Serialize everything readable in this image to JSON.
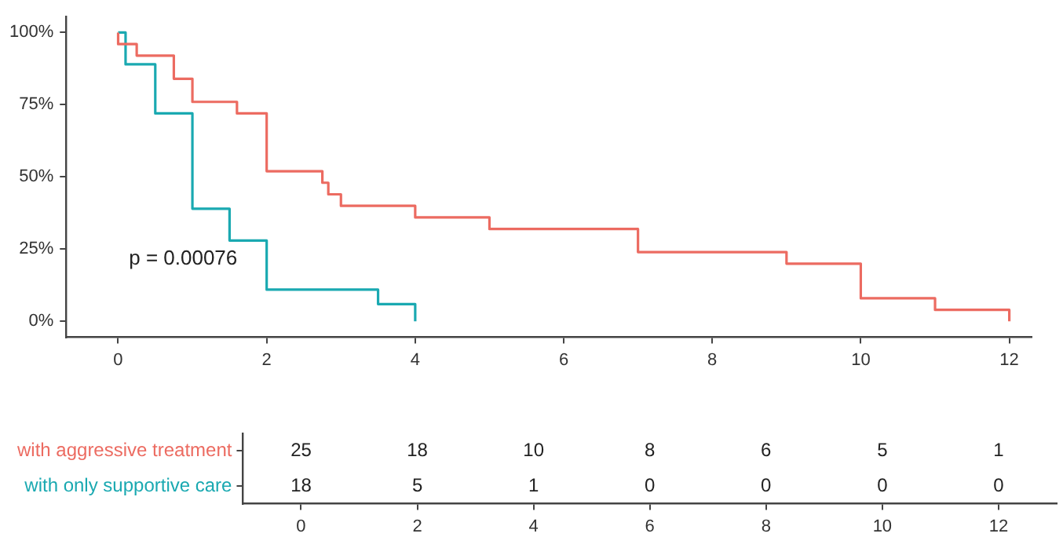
{
  "chart_data": [
    {
      "type": "step",
      "annotations": [
        "p = 0.00076"
      ],
      "series": [
        {
          "name": null,
          "color": "#ec6b61",
          "x": [
            0,
            0,
            0.25,
            0.75,
            1,
            1.6,
            2,
            2.75,
            2.83,
            3,
            4,
            5,
            7,
            9,
            10,
            11,
            12
          ],
          "values": [
            100,
            96,
            92,
            84,
            76,
            72,
            52,
            48,
            44,
            40,
            36,
            32,
            24,
            20,
            8,
            4,
            0
          ]
        },
        {
          "name": null,
          "color": "#1aa9b1",
          "x": [
            0,
            0.1,
            0.5,
            1,
            1.5,
            2,
            3.5,
            4
          ],
          "values": [
            100,
            89,
            72,
            39,
            28,
            11,
            6,
            0
          ]
        }
      ],
      "xlim": [
        -0.7,
        12.3
      ],
      "xticks": [
        0,
        2,
        4,
        6,
        8,
        10,
        12
      ],
      "ylim": [
        -5.5,
        105.5
      ],
      "yticks": [
        {
          "value": 0,
          "label": "0%"
        },
        {
          "value": 25,
          "label": "25%"
        },
        {
          "value": 50,
          "label": "50%"
        },
        {
          "value": 75,
          "label": "75%"
        },
        {
          "value": 100,
          "label": "100%"
        }
      ],
      "legend": false
    },
    {
      "type": "heatmap",
      "data_labels": true,
      "categories": [
        "0",
        "2",
        "4",
        "6",
        "8",
        "10",
        "12"
      ],
      "y_categories": [
        "with aggressive treatment",
        "with only supportive care"
      ],
      "colors": [
        "#ec6b61",
        "#1aa9b1"
      ],
      "cells": [
        [
          25,
          18,
          10,
          8,
          6,
          5,
          1
        ],
        [
          18,
          5,
          1,
          0,
          0,
          0,
          0
        ]
      ]
    }
  ]
}
